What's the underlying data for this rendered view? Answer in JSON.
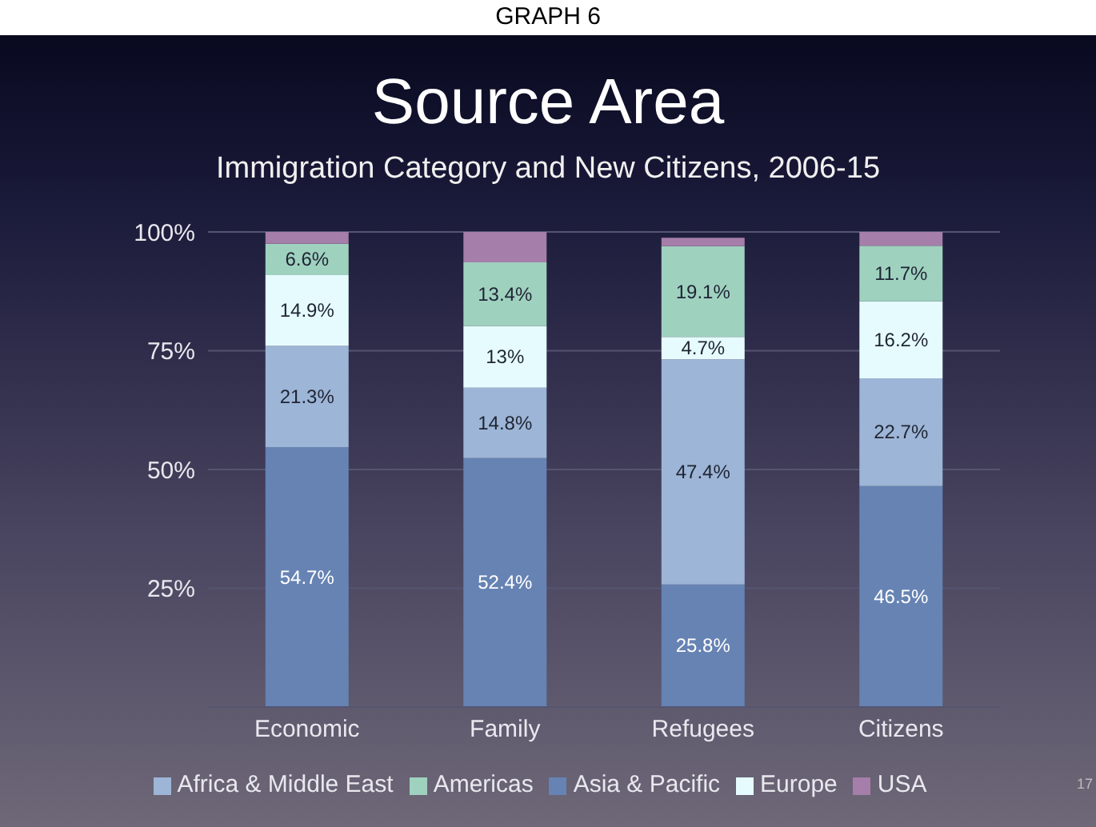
{
  "chart_data": {
    "type": "bar",
    "title": "Source Area",
    "subtitle": "Immigration Category and New Citizens, 2006-15",
    "annotations": [
      "GRAPH 6",
      "17"
    ],
    "categories": [
      "Economic",
      "Family",
      "Refugees",
      "Citizens"
    ],
    "stacked": true,
    "series": [
      {
        "name": "Asia & Pacific",
        "color": "#6683b3",
        "values": [
          54.7,
          52.4,
          25.8,
          46.5
        ],
        "value_labels": [
          "54.7%",
          "52.4%",
          "25.8%",
          "46.5%"
        ]
      },
      {
        "name": "Africa & Middle East",
        "color": "#9db5d6",
        "values": [
          21.3,
          14.8,
          47.4,
          22.7
        ],
        "value_labels": [
          "21.3%",
          "14.8%",
          "47.4%",
          "22.7%"
        ]
      },
      {
        "name": "Europe",
        "color": "#e6fbfd",
        "values": [
          14.9,
          13,
          4.7,
          16.2
        ],
        "value_labels": [
          "14.9%",
          "13%",
          "4.7%",
          "16.2%"
        ]
      },
      {
        "name": "Americas",
        "color": "#9fd1bf",
        "values": [
          6.6,
          13.4,
          19.1,
          11.7
        ],
        "value_labels": [
          "6.6%",
          "13.4%",
          "19.1%",
          "11.7%"
        ]
      },
      {
        "name": "USA",
        "color": "#a57ea9",
        "values": [
          2.5,
          6.4,
          1.8,
          2.9
        ],
        "value_labels": [
          null,
          null,
          null,
          null
        ]
      }
    ],
    "ylim": [
      0,
      100
    ],
    "yticks": [
      {
        "value": 25,
        "label": "25%"
      },
      {
        "value": 50,
        "label": "50%"
      },
      {
        "value": 75,
        "label": "75%"
      },
      {
        "value": 100,
        "label": "100%"
      }
    ],
    "grid": "y",
    "legend": "bottom"
  }
}
